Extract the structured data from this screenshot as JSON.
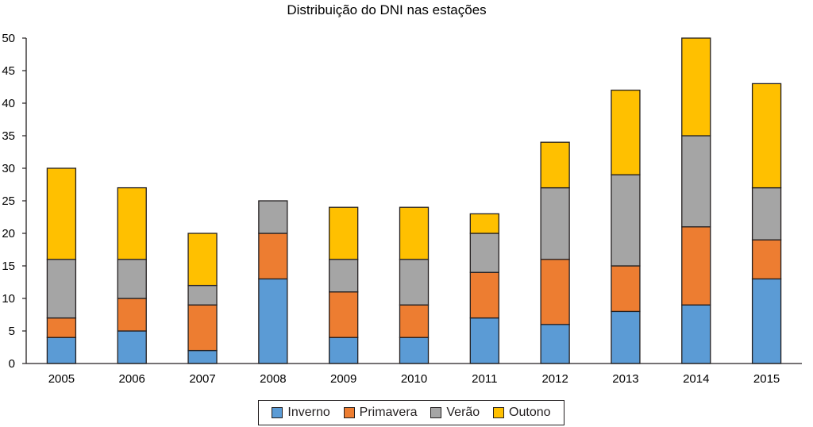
{
  "chart_data": {
    "type": "bar",
    "stacked": true,
    "title": "Distribuição do DNI nas estações",
    "xlabel": "",
    "ylabel": "",
    "ylim": [
      0,
      50
    ],
    "yticks": [
      0,
      5,
      10,
      15,
      20,
      25,
      30,
      35,
      40,
      45,
      50
    ],
    "grid": false,
    "legend_position": "bottom",
    "categories": [
      "2005",
      "2006",
      "2007",
      "2008",
      "2009",
      "2010",
      "2011",
      "2012",
      "2013",
      "2014",
      "2015"
    ],
    "series": [
      {
        "name": "Inverno",
        "color": "#5b9bd5",
        "values": [
          4,
          5,
          2,
          13,
          4,
          4,
          7,
          6,
          8,
          9,
          13
        ]
      },
      {
        "name": "Primavera",
        "color": "#ed7d31",
        "values": [
          3,
          5,
          7,
          7,
          7,
          5,
          7,
          10,
          7,
          12,
          6
        ]
      },
      {
        "name": "Verão",
        "color": "#a5a5a5",
        "values": [
          9,
          6,
          3,
          5,
          5,
          7,
          6,
          11,
          14,
          14,
          8
        ]
      },
      {
        "name": "Outono",
        "color": "#ffc000",
        "values": [
          14,
          11,
          8,
          0,
          8,
          8,
          3,
          7,
          13,
          15,
          16
        ]
      }
    ]
  }
}
